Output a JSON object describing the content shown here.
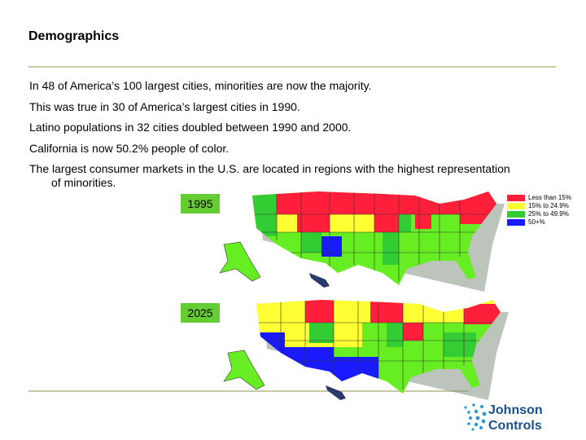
{
  "header": {
    "title": "Demographics"
  },
  "bullets": [
    "In 48 of America’s 100 largest cities, minorities are now the majority.",
    "This was true in 30 of America’s largest cities in 1990.",
    "Latino populations in 32 cities doubled between 1990 and 2000.",
    "California is now 50.2% people of color.",
    "The largest consumer markets in the U.S. are located in regions with the highest representation of minorities."
  ],
  "maps": [
    {
      "label": "1995"
    },
    {
      "label": "2025"
    }
  ],
  "legend": [
    {
      "label": "Less than 15%",
      "color": "#ff1f3a"
    },
    {
      "label": "15% to 24.9%",
      "color": "#ffff33"
    },
    {
      "label": "25% to 49.9%",
      "color": "#33cc33"
    },
    {
      "label": "50+%",
      "color": "#1a1aff"
    }
  ],
  "logo": {
    "line1": "Johnson",
    "line2": "Controls"
  }
}
